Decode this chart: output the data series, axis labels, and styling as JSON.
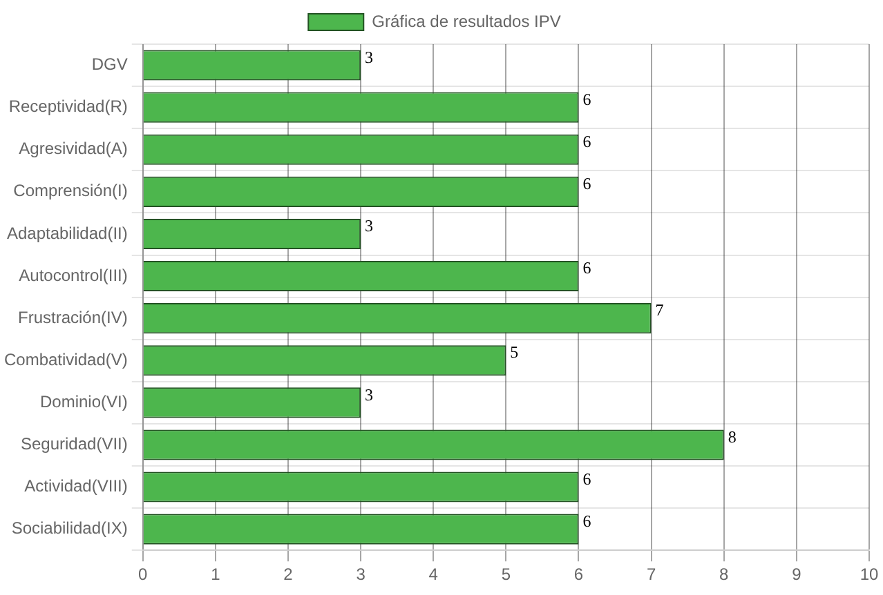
{
  "chart_data": {
    "type": "bar",
    "orientation": "horizontal",
    "categories": [
      "DGV",
      "Receptividad(R)",
      "Agresividad(A)",
      "Comprensión(I)",
      "Adaptabilidad(II)",
      "Autocontrol(III)",
      "Frustración(IV)",
      "Combatividad(V)",
      "Dominio(VI)",
      "Seguridad(VII)",
      "Actividad(VIII)",
      "Sociabilidad(IX)"
    ],
    "series": [
      {
        "name": "Gráfica de resultados IPV",
        "color": "#4db64d",
        "values": [
          3,
          6,
          6,
          6,
          3,
          6,
          7,
          5,
          3,
          8,
          6,
          6
        ]
      }
    ],
    "xlim": [
      0,
      10
    ],
    "xticks": [
      0,
      1,
      2,
      3,
      4,
      5,
      6,
      7,
      8,
      9,
      10
    ],
    "grid": true,
    "legend": "top",
    "data_labels": true
  }
}
